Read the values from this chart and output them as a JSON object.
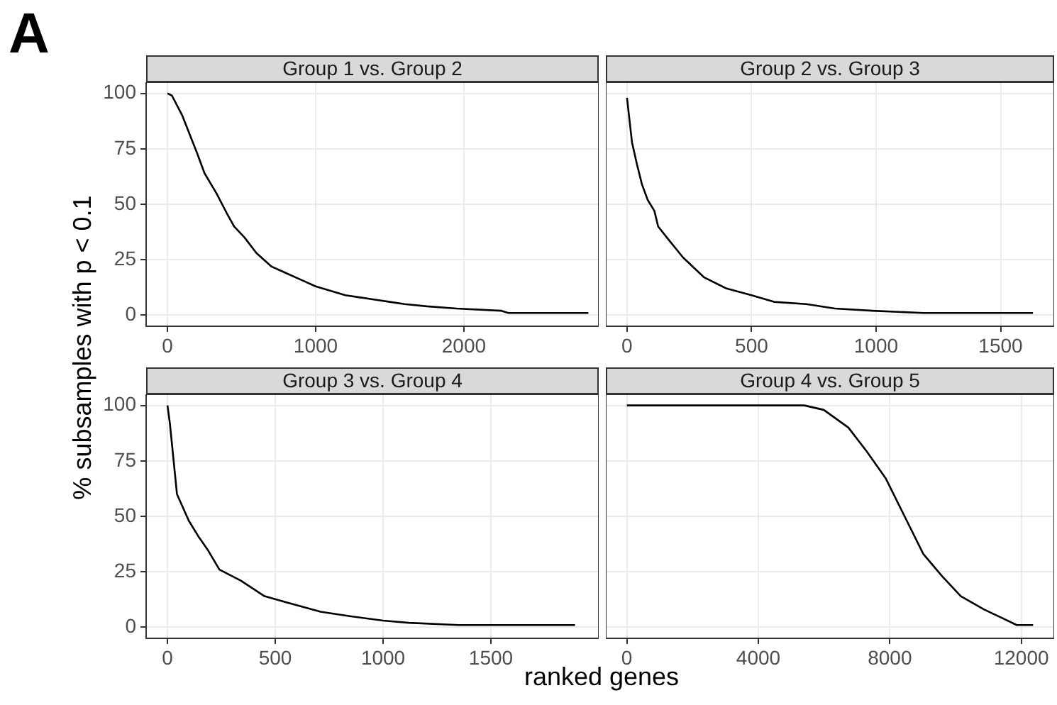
{
  "chart_data": [
    {
      "type": "line",
      "title": "Group 1 vs. Group 2",
      "annotations": [
        "A"
      ],
      "ylabel": "% subsamples with p < 0.1",
      "color": "#000000",
      "marker": "none",
      "grid": true,
      "x": [
        0,
        30,
        100,
        200,
        250,
        330,
        400,
        450,
        520,
        600,
        700,
        800,
        900,
        1000,
        1100,
        1200,
        1300,
        1400,
        1500,
        1600,
        1750,
        1950,
        2250,
        2300,
        2840
      ],
      "values": [
        100,
        99,
        90,
        73,
        64,
        55,
        46,
        40,
        35,
        28,
        22,
        19,
        16,
        13,
        11,
        9,
        8,
        7,
        6,
        5,
        4,
        3,
        2,
        1,
        1
      ],
      "xlim": [
        -144,
        2910
      ],
      "xticks": [
        0,
        1000,
        2000
      ],
      "ylim": [
        -5,
        105
      ],
      "yticks": [
        0,
        25,
        50,
        75,
        100
      ]
    },
    {
      "type": "line",
      "title": "Group 2 vs. Group 3",
      "color": "#000000",
      "marker": "none",
      "grid": true,
      "tick_labels": "x",
      "x": [
        0,
        20,
        40,
        60,
        83,
        110,
        125,
        160,
        225,
        310,
        400,
        500,
        590,
        720,
        835,
        985,
        1190,
        1630
      ],
      "values": [
        98,
        78,
        68,
        59,
        52,
        47,
        40,
        35,
        26,
        17,
        12,
        9,
        6,
        5,
        3,
        2,
        1,
        1
      ],
      "xlim": [
        -85,
        1715
      ],
      "xticks": [
        0,
        500,
        1000,
        1500
      ],
      "ylim": [
        -5,
        105
      ],
      "yticks": [
        0,
        25,
        50,
        75,
        100
      ]
    },
    {
      "type": "line",
      "title": "Group 3 vs. Group 4",
      "xlabel": "ranked genes",
      "color": "#000000",
      "marker": "none",
      "grid": true,
      "x": [
        0,
        11,
        44,
        99,
        143,
        186,
        241,
        340,
        450,
        560,
        710,
        845,
        1000,
        1120,
        1350,
        1890
      ],
      "values": [
        100,
        92,
        60,
        48,
        41,
        35,
        26,
        21,
        14,
        11,
        7,
        5,
        3,
        2,
        1,
        1
      ],
      "xlim": [
        -99,
        2000
      ],
      "xticks": [
        0,
        500,
        1000,
        1500
      ],
      "ylim": [
        -5,
        105
      ],
      "yticks": [
        0,
        25,
        50,
        75,
        100
      ]
    },
    {
      "type": "line",
      "title": "Group 4 vs. Group 5",
      "color": "#000000",
      "marker": "none",
      "grid": true,
      "tick_labels": "x",
      "x": [
        0,
        5400,
        5990,
        6740,
        7310,
        7880,
        8450,
        9020,
        9590,
        10160,
        10870,
        11440,
        11860,
        12360
      ],
      "values": [
        100,
        100,
        98,
        90,
        79,
        67,
        50,
        33,
        23,
        14,
        8,
        4,
        1,
        1
      ],
      "xlim": [
        -640,
        13000
      ],
      "xticks": [
        0,
        4000,
        8000,
        12000
      ],
      "ylim": [
        -5,
        105
      ],
      "yticks": [
        0,
        25,
        50,
        75,
        100
      ]
    }
  ]
}
